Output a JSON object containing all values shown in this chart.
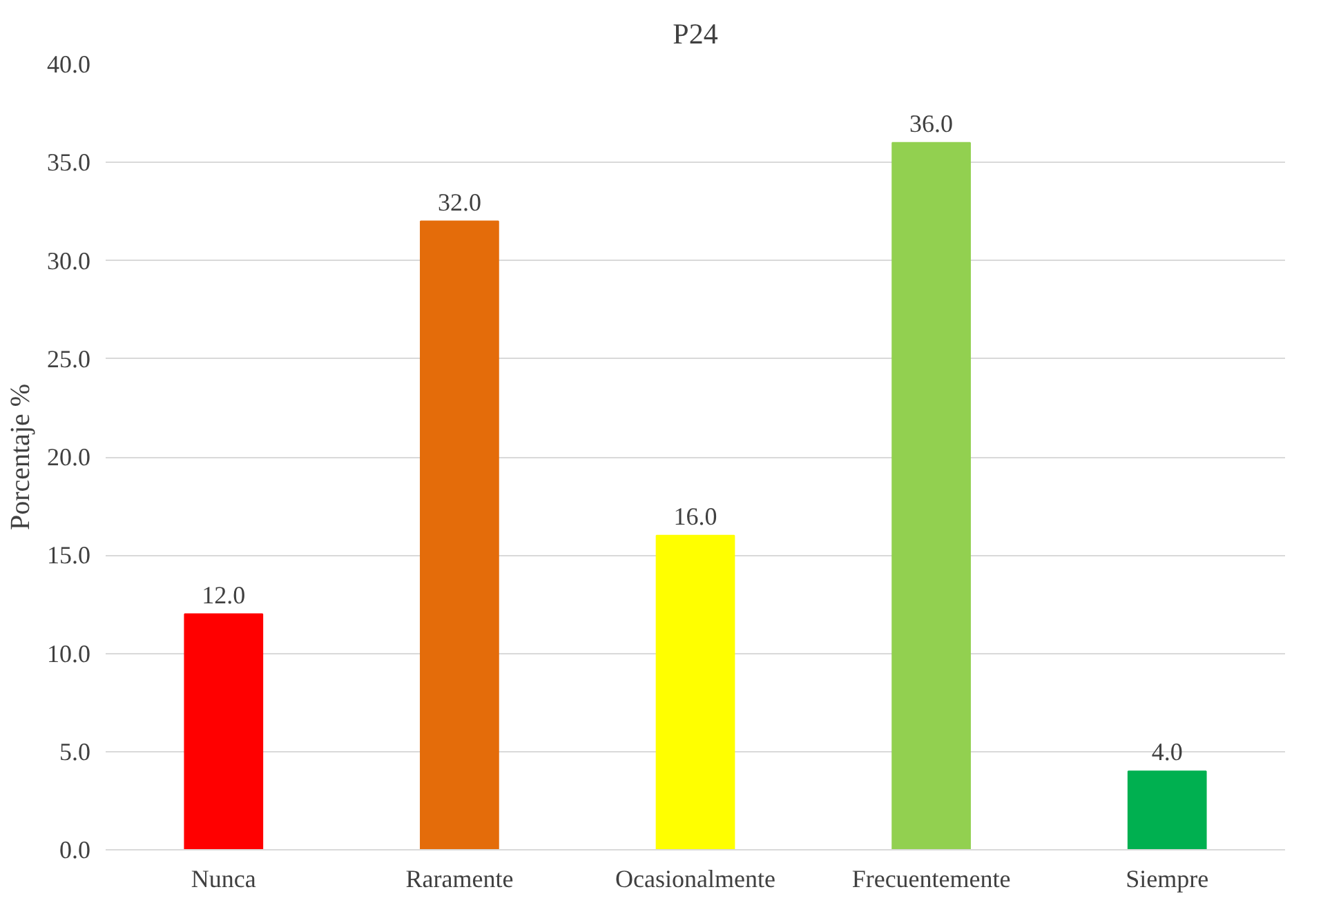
{
  "chart_data": {
    "type": "bar",
    "title": "P24",
    "ylabel": "Porcentaje %",
    "categories": [
      "Nunca",
      "Raramente",
      "Ocasionalmente",
      "Frecuentemente",
      "Siempre"
    ],
    "values": [
      12,
      32,
      16,
      36,
      4
    ],
    "colors": [
      "#ff0000",
      "#e46c0a",
      "#ffff00",
      "#92d050",
      "#00b050"
    ],
    "value_labels": [
      "12.0",
      "32.0",
      "16.0",
      "36.0",
      "4.0"
    ],
    "ylim": [
      0,
      40
    ],
    "yticks": [
      {
        "value": 0,
        "label": "0.0"
      },
      {
        "value": 5,
        "label": "5.0"
      },
      {
        "value": 10,
        "label": "10.0"
      },
      {
        "value": 15,
        "label": "15.0"
      },
      {
        "value": 20,
        "label": "20.0"
      },
      {
        "value": 25,
        "label": "25.0"
      },
      {
        "value": 30,
        "label": "30.0"
      },
      {
        "value": 35,
        "label": "35.0"
      },
      {
        "value": 40,
        "label": "40.0"
      }
    ],
    "grid": "y"
  }
}
